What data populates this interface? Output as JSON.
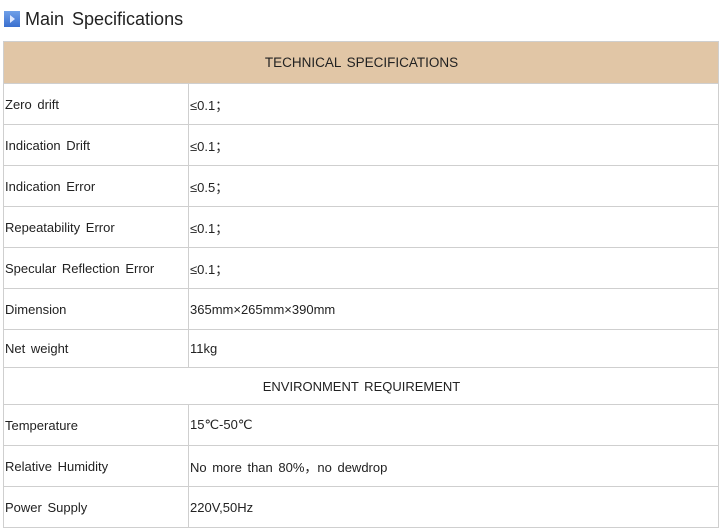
{
  "title": "Main Specifications",
  "sections": [
    {
      "heading": "TECHNICAL SPECIFICATIONS",
      "rows": [
        [
          "Zero drift",
          "≤0.1；"
        ],
        [
          "Indication Drift",
          "≤0.1；"
        ],
        [
          "Indication Error",
          "≤0.5；"
        ],
        [
          "Repeatability Error",
          "≤0.1；"
        ],
        [
          "Specular Reflection Error",
          "≤0.1；"
        ],
        [
          "Dimension",
          "365mm×265mm×390mm"
        ],
        [
          "Net weight",
          "11kg"
        ]
      ]
    },
    {
      "heading": "ENVIRONMENT REQUIREMENT",
      "rows": [
        [
          "Temperature",
          "15℃-50℃"
        ],
        [
          "Relative Humidity",
          "No more than 80%，no dewdrop"
        ],
        [
          "Power Supply",
          "220V,50Hz"
        ]
      ]
    }
  ]
}
